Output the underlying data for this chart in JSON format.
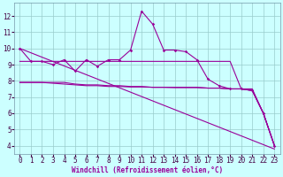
{
  "xlabel": "Windchill (Refroidissement éolien,°C)",
  "x": [
    0,
    1,
    2,
    3,
    4,
    5,
    6,
    7,
    8,
    9,
    10,
    11,
    12,
    13,
    14,
    15,
    16,
    17,
    18,
    19,
    20,
    21,
    22,
    23
  ],
  "line_main": [
    10.0,
    9.2,
    9.2,
    9.0,
    9.3,
    8.6,
    9.3,
    8.9,
    9.3,
    9.3,
    9.9,
    12.3,
    11.5,
    9.9,
    9.9,
    9.8,
    9.3,
    8.1,
    7.7,
    7.5,
    7.5,
    7.4,
    6.0,
    4.0
  ],
  "line_flat1": [
    9.2,
    9.2,
    9.2,
    9.2,
    9.2,
    9.2,
    9.2,
    9.2,
    9.2,
    9.2,
    9.2,
    9.2,
    9.2,
    9.2,
    9.2,
    9.2,
    9.2,
    9.2,
    9.2,
    9.2,
    7.5,
    7.5,
    6.0,
    4.0
  ],
  "line_flat2": [
    7.9,
    7.9,
    7.9,
    7.9,
    7.9,
    7.8,
    7.75,
    7.75,
    7.7,
    7.7,
    7.65,
    7.65,
    7.6,
    7.6,
    7.6,
    7.6,
    7.6,
    7.55,
    7.55,
    7.5,
    7.5,
    7.4,
    6.0,
    4.0
  ],
  "line_flat3": [
    7.9,
    7.9,
    7.9,
    7.85,
    7.8,
    7.75,
    7.7,
    7.7,
    7.65,
    7.65,
    7.62,
    7.62,
    7.6,
    7.6,
    7.58,
    7.58,
    7.58,
    7.55,
    7.55,
    7.5,
    7.5,
    7.4,
    6.0,
    4.0
  ],
  "line_diag": [
    10.0,
    9.73,
    9.46,
    9.19,
    8.92,
    8.65,
    8.38,
    8.11,
    7.84,
    7.57,
    7.3,
    7.03,
    6.76,
    6.49,
    6.22,
    5.95,
    5.68,
    5.41,
    5.14,
    4.87,
    4.6,
    4.33,
    4.06,
    3.79
  ],
  "color_line": "#990099",
  "bg_color": "#ccffff",
  "grid_color": "#99cccc",
  "ylim": [
    3.5,
    12.8
  ],
  "yticks": [
    4,
    5,
    6,
    7,
    8,
    9,
    10,
    11,
    12
  ],
  "xlim": [
    -0.5,
    23.5
  ],
  "tick_fontsize": 5.5,
  "xlabel_fontsize": 5.5
}
